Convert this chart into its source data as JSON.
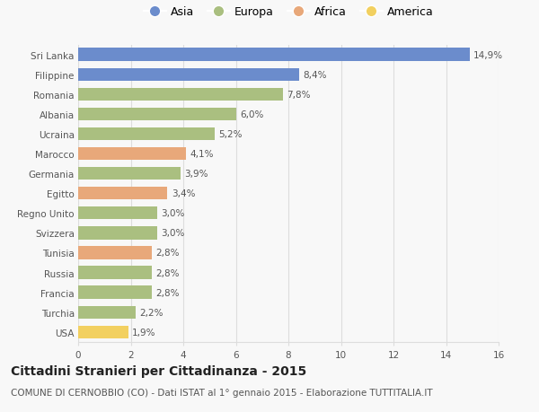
{
  "countries": [
    "Sri Lanka",
    "Filippine",
    "Romania",
    "Albania",
    "Ucraina",
    "Marocco",
    "Germania",
    "Egitto",
    "Regno Unito",
    "Svizzera",
    "Tunisia",
    "Russia",
    "Francia",
    "Turchia",
    "USA"
  ],
  "values": [
    14.9,
    8.4,
    7.8,
    6.0,
    5.2,
    4.1,
    3.9,
    3.4,
    3.0,
    3.0,
    2.8,
    2.8,
    2.8,
    2.2,
    1.9
  ],
  "continents": [
    "Asia",
    "Asia",
    "Europa",
    "Europa",
    "Europa",
    "Africa",
    "Europa",
    "Africa",
    "Europa",
    "Europa",
    "Africa",
    "Europa",
    "Europa",
    "Europa",
    "America"
  ],
  "colors": {
    "Asia": "#6b8ccc",
    "Europa": "#aabf80",
    "Africa": "#e8a87a",
    "America": "#f2d060"
  },
  "legend_order": [
    "Asia",
    "Europa",
    "Africa",
    "America"
  ],
  "xlim": [
    0,
    16
  ],
  "xticks": [
    0,
    2,
    4,
    6,
    8,
    10,
    12,
    14,
    16
  ],
  "title": "Cittadini Stranieri per Cittadinanza - 2015",
  "subtitle": "COMUNE DI CERNOBBIO (CO) - Dati ISTAT al 1° gennaio 2015 - Elaborazione TUTTITALIA.IT",
  "bg_color": "#f8f8f8",
  "bar_height": 0.65,
  "label_fontsize": 7.5,
  "tick_fontsize": 7.5,
  "title_fontsize": 10,
  "subtitle_fontsize": 7.5,
  "legend_fontsize": 9
}
